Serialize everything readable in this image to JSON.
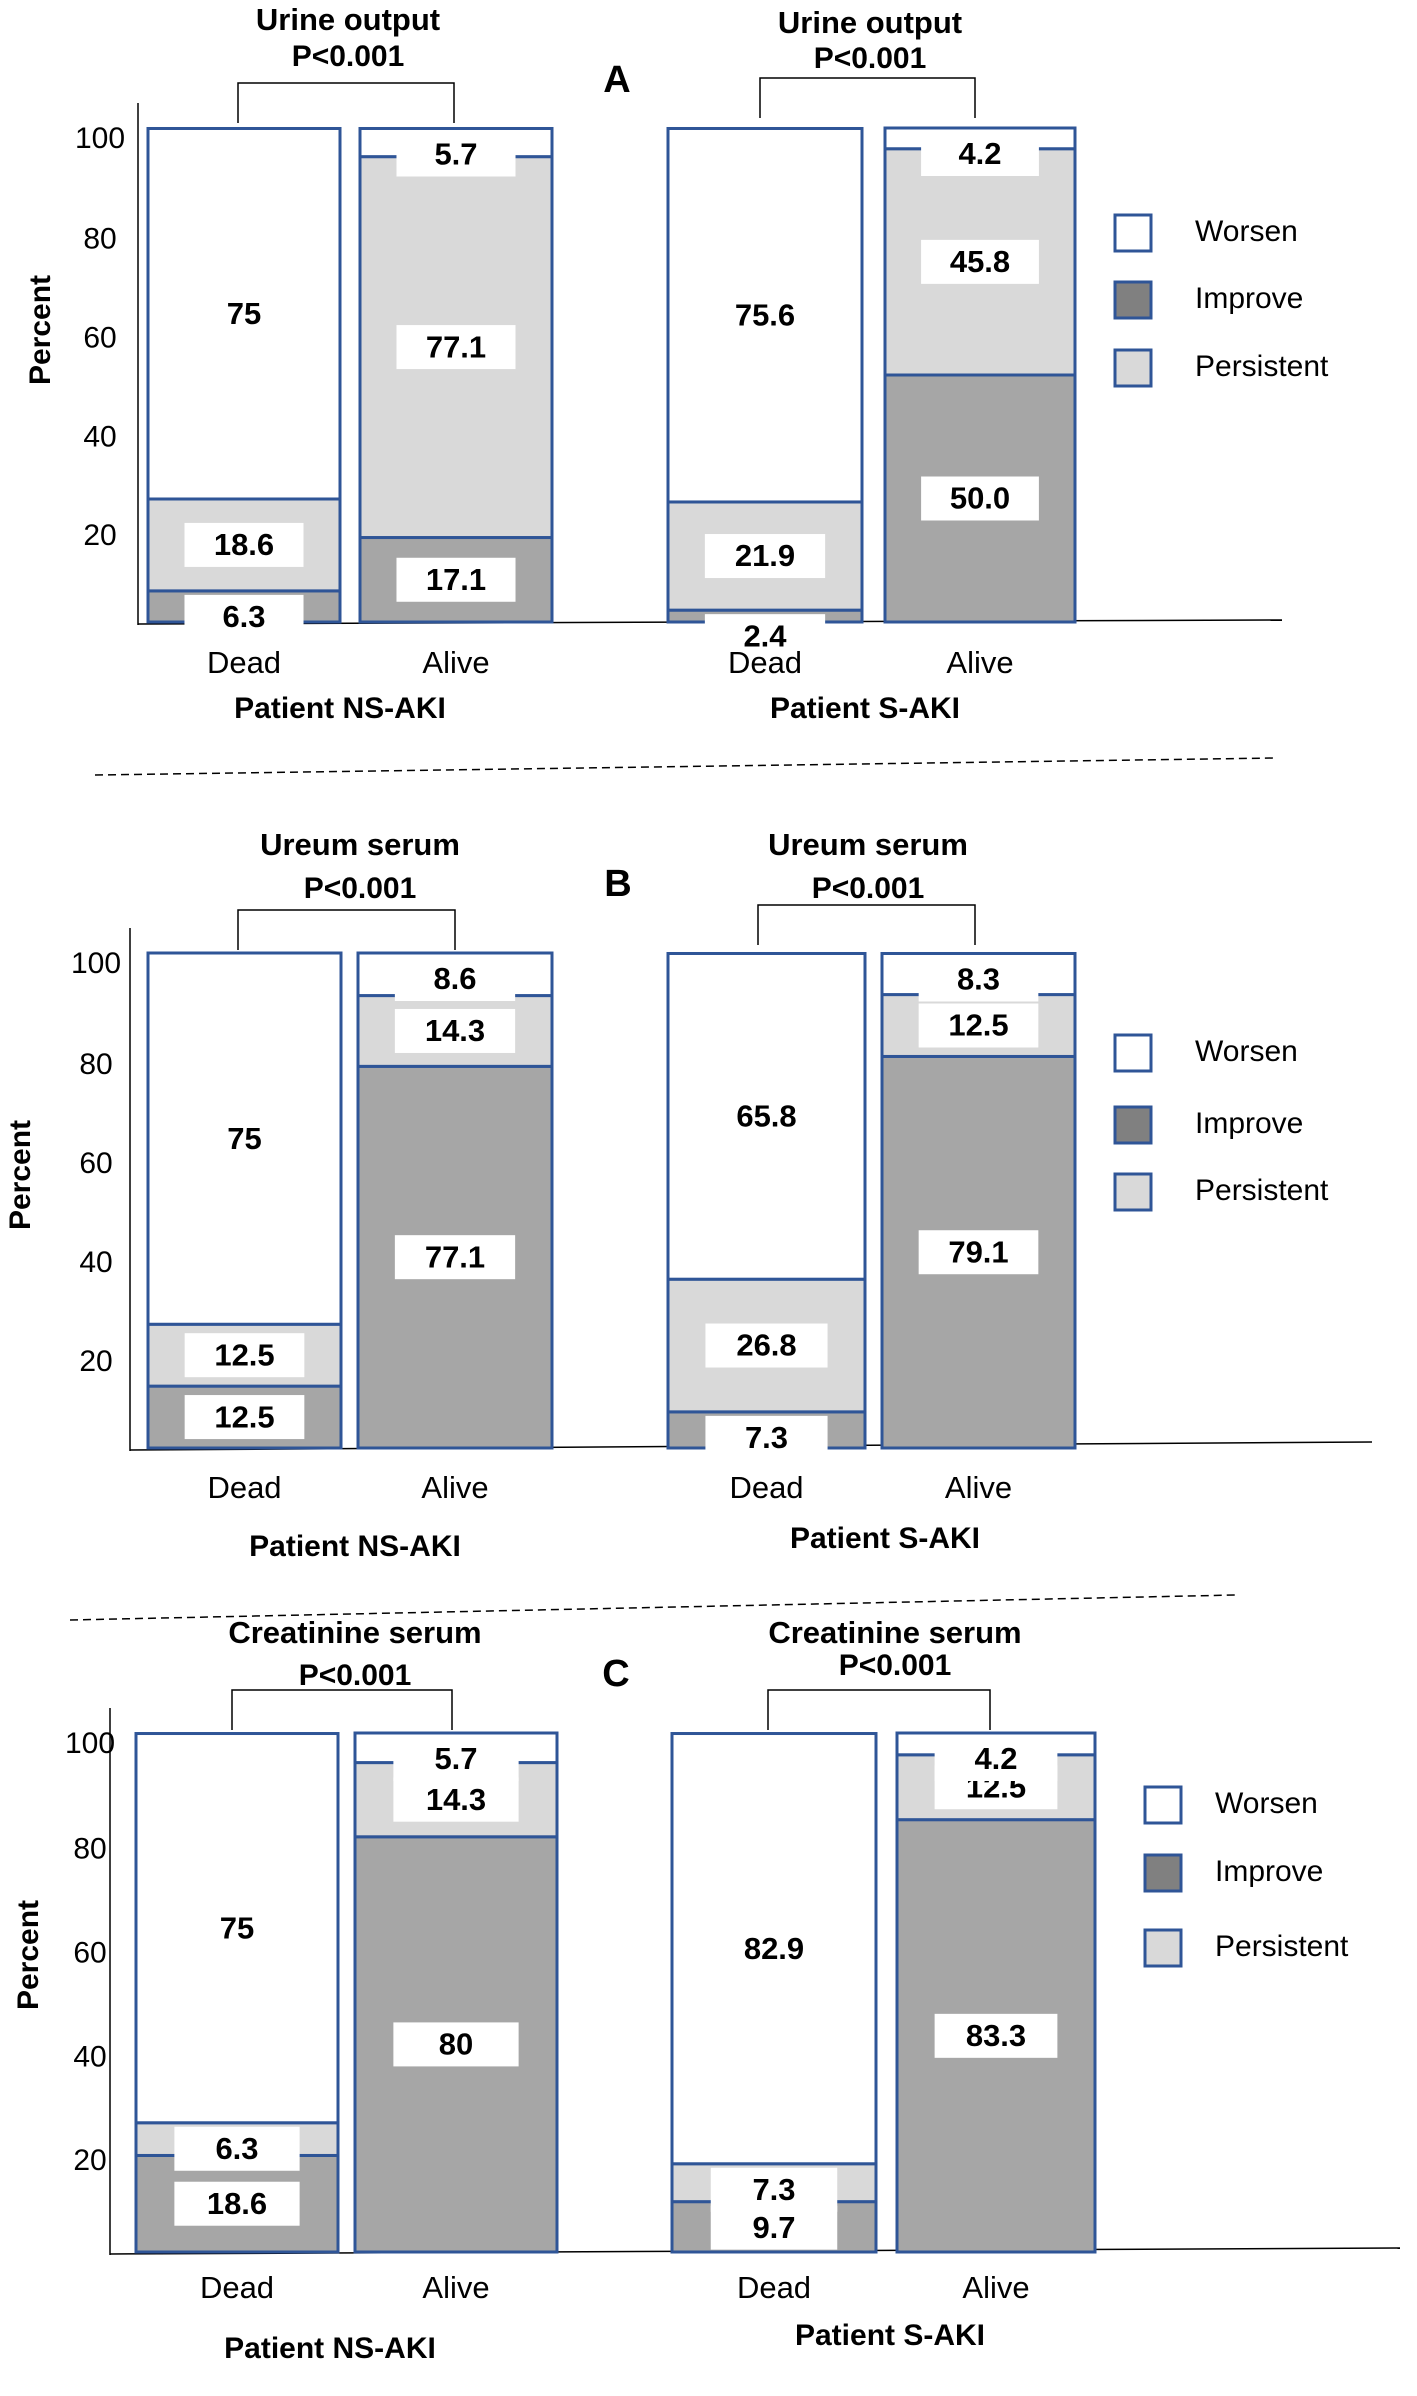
{
  "legend": [
    {
      "key": "worsen",
      "label": "Worsen",
      "color": "#ffffff"
    },
    {
      "key": "improve",
      "label": "Improve",
      "color": "#808080"
    },
    {
      "key": "persistent",
      "label": "Persistent",
      "color": "#d9d9d9"
    }
  ],
  "colors": {
    "worsen": "#ffffff",
    "improve": "#a6a6a6",
    "persistent": "#d9d9d9",
    "border": "#2f5597",
    "label_box": "#ffffff"
  },
  "chart_data": [
    {
      "panel": "A",
      "type": "bar",
      "ylabel": "Percent",
      "yticks": [
        20,
        40,
        60,
        80,
        100
      ],
      "groups": [
        {
          "title": "Urine output",
          "pvalue": "P<0.001",
          "patient": "Patient NS-AKI",
          "categories": [
            "Dead",
            "Alive"
          ],
          "series": [
            {
              "name": "Improve",
              "values": [
                6.3,
                17.1
              ]
            },
            {
              "name": "Persistent",
              "values": [
                18.6,
                77.1
              ]
            },
            {
              "name": "Worsen",
              "values": [
                75,
                5.7
              ]
            }
          ]
        },
        {
          "title": "Urine output",
          "pvalue": "P<0.001",
          "patient": "Patient S-AKI",
          "categories": [
            "Dead",
            "Alive"
          ],
          "series": [
            {
              "name": "Improve",
              "values": [
                2.4,
                50.0
              ],
              "labels": [
                "2.4",
                "50.0"
              ]
            },
            {
              "name": "Persistent",
              "values": [
                21.9,
                45.8
              ]
            },
            {
              "name": "Worsen",
              "values": [
                75.6,
                4.2
              ]
            }
          ]
        }
      ]
    },
    {
      "panel": "B",
      "type": "bar",
      "ylabel": "Percent",
      "yticks": [
        20,
        40,
        60,
        80,
        100
      ],
      "groups": [
        {
          "title": "Ureum serum",
          "pvalue": "P<0.001",
          "patient": "Patient NS-AKI",
          "categories": [
            "Dead",
            "Alive"
          ],
          "series": [
            {
              "name": "Improve",
              "values": [
                12.5,
                77.1
              ]
            },
            {
              "name": "Persistent",
              "values": [
                12.5,
                14.3
              ]
            },
            {
              "name": "Worsen",
              "values": [
                75,
                8.6
              ]
            }
          ]
        },
        {
          "title": "Ureum serum",
          "pvalue": "P<0.001",
          "patient": "Patient S-AKI",
          "categories": [
            "Dead",
            "Alive"
          ],
          "series": [
            {
              "name": "Improve",
              "values": [
                7.3,
                79.1
              ]
            },
            {
              "name": "Persistent",
              "values": [
                26.8,
                12.5
              ]
            },
            {
              "name": "Worsen",
              "values": [
                65.8,
                8.3
              ]
            }
          ]
        }
      ]
    },
    {
      "panel": "C",
      "type": "bar",
      "ylabel": "Percent",
      "yticks": [
        20,
        40,
        60,
        80,
        100
      ],
      "groups": [
        {
          "title": "Creatinine serum",
          "pvalue": "P<0.001",
          "patient": "Patient NS-AKI",
          "categories": [
            "Dead",
            "Alive"
          ],
          "series": [
            {
              "name": "Improve",
              "values": [
                18.6,
                80
              ]
            },
            {
              "name": "Persistent",
              "values": [
                6.3,
                14.3
              ]
            },
            {
              "name": "Worsen",
              "values": [
                75,
                5.7
              ]
            }
          ]
        },
        {
          "title": "Creatinine serum",
          "pvalue": "P<0.001",
          "patient": "Patient S-AKI",
          "categories": [
            "Dead",
            "Alive"
          ],
          "series": [
            {
              "name": "Improve",
              "values": [
                9.7,
                83.3
              ]
            },
            {
              "name": "Persistent",
              "values": [
                7.3,
                12.5
              ]
            },
            {
              "name": "Worsen",
              "values": [
                82.9,
                4.2
              ]
            }
          ]
        }
      ]
    }
  ]
}
